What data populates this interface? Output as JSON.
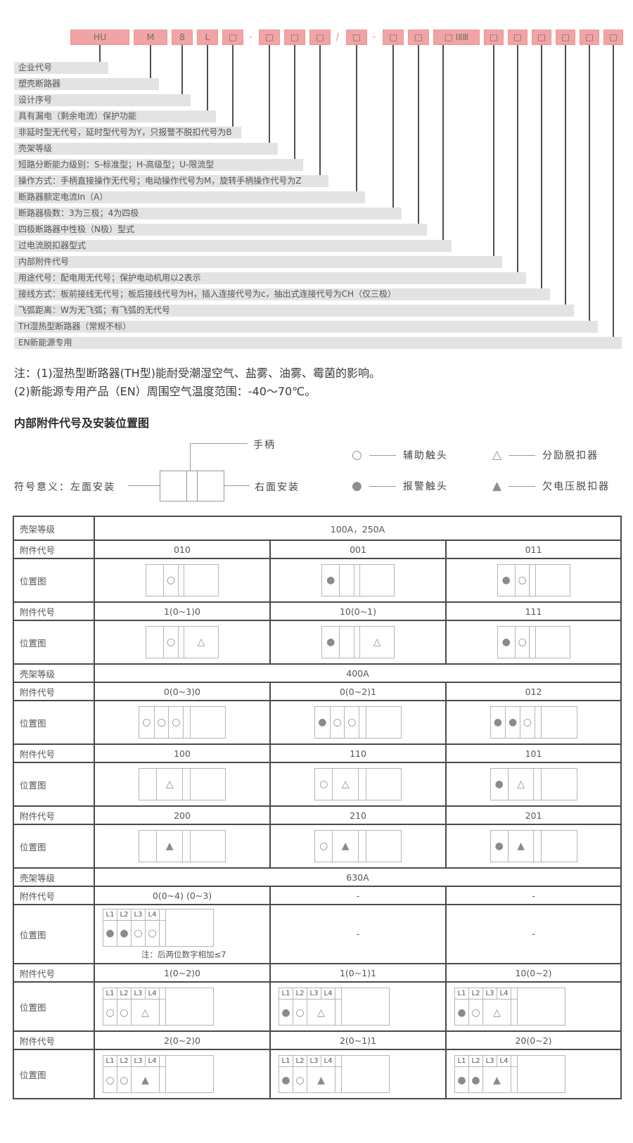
{
  "colors": {
    "accent_pink": "#f2a4a4",
    "pink_border": "#eb9595",
    "bar_gray": "#e3e3e3",
    "line_dark": "#4f4f4f",
    "table_border": "#4a4a4a",
    "symbol_gray": "#8f8f8f",
    "text_gray": "#555555"
  },
  "model": {
    "segments": [
      {
        "text": "HU",
        "kind": "box"
      },
      {
        "text": "M",
        "kind": "box"
      },
      {
        "text": "8",
        "kind": "box"
      },
      {
        "text": "L",
        "kind": "box"
      },
      {
        "text": "□",
        "kind": "box"
      },
      {
        "text": "-",
        "kind": "sep"
      },
      {
        "text": "□",
        "kind": "box"
      },
      {
        "text": "□",
        "kind": "box"
      },
      {
        "text": "□",
        "kind": "box"
      },
      {
        "text": "/",
        "kind": "sep"
      },
      {
        "text": "□",
        "kind": "box"
      },
      {
        "text": "-",
        "kind": "sep"
      },
      {
        "text": "□",
        "kind": "box"
      },
      {
        "text": "□",
        "kind": "box"
      },
      {
        "text": "□ ⅠⅡⅢ",
        "kind": "box"
      },
      {
        "text": "□",
        "kind": "box"
      },
      {
        "text": "□",
        "kind": "box"
      },
      {
        "text": "□",
        "kind": "box"
      },
      {
        "text": "□",
        "kind": "box"
      },
      {
        "text": "□",
        "kind": "box"
      },
      {
        "text": "□",
        "kind": "box"
      }
    ],
    "fields": [
      "企业代号",
      "塑壳断路器",
      "设计序号",
      "具有漏电（剩余电流）保护功能",
      "非延时型无代号，延时型代号为Y，只报警不脱扣代号为B",
      "壳架等级",
      "短路分断能力级别：S-标准型；H-高级型；U-限流型",
      "操作方式：手柄直接操作无代号；电动操作代号为M，旋转手柄操作代号为Z",
      "断路器额定电流In（A）",
      "断路器极数：3为三极；4为四极",
      "四极断路器中性极（N极）型式",
      "过电流脱扣器型式",
      "内部附件代号",
      "用途代号：配电用无代号；保护电动机用以2表示",
      "接线方式：板前接线无代号；板后接线代号为H，插入连接代号为c，抽出式连接代号为CH（仅三极）",
      "飞弧距离：W为无飞弧；有飞弧的无代号",
      "TH湿热型断路器（常规不标）",
      "EN新能源专用"
    ]
  },
  "notes": [
    "注：(1)湿热型断路器(TH型)能耐受潮湿空气、盐雾、油雾、霉菌的影响。",
    "(2)新能源专用产品（EN）周围空气温度范围：-40～70℃。"
  ],
  "section_title": "内部附件代号及安装位置图",
  "legend": {
    "meaning_prefix": "符号意义：",
    "left_label": "左面安装",
    "right_label": "右面安装",
    "top_label": "手柄",
    "items": [
      {
        "symbol": "○",
        "label": "辅助触头"
      },
      {
        "symbol": "△",
        "label": "分励脱扣器"
      },
      {
        "symbol": "●",
        "label": "报警触头"
      },
      {
        "symbol": "▲",
        "label": "欠电压脱扣器"
      }
    ]
  },
  "table": {
    "row_labels": {
      "frame": "壳架等级",
      "codes": "附件代号",
      "diagrams": "位置图"
    },
    "rows": [
      {
        "kind": "frame",
        "value": "100A，250A"
      },
      {
        "kind": "codes",
        "values": [
          "010",
          "001",
          "011"
        ]
      },
      {
        "kind": "diagrams",
        "cells": [
          {
            "type": "A",
            "syms": [
              "",
              "circ",
              "",
              ""
            ]
          },
          {
            "type": "A",
            "syms": [
              "dot",
              "",
              "",
              ""
            ]
          },
          {
            "type": "A",
            "syms": [
              "dot",
              "circ",
              "",
              ""
            ]
          }
        ]
      },
      {
        "kind": "codes",
        "values": [
          "1(0~1)0",
          "10(0~1)",
          "111"
        ]
      },
      {
        "kind": "diagrams",
        "cells": [
          {
            "type": "A",
            "syms": [
              "",
              "circ",
              "",
              "tri"
            ]
          },
          {
            "type": "A",
            "syms": [
              "dot",
              "",
              "",
              "tri"
            ]
          },
          {
            "type": "A",
            "syms": [
              "dot",
              "circ",
              "",
              ""
            ]
          }
        ]
      },
      {
        "kind": "frame",
        "value": "400A"
      },
      {
        "kind": "codes",
        "values": [
          "0(0~3)0",
          "0(0~2)1",
          "012"
        ]
      },
      {
        "kind": "diagrams",
        "cells": [
          {
            "type": "B",
            "syms": [
              "circ",
              "circ",
              "circ",
              "",
              ""
            ]
          },
          {
            "type": "B",
            "syms": [
              "dot",
              "circ",
              "circ",
              "",
              ""
            ]
          },
          {
            "type": "B",
            "syms": [
              "dot",
              "dot",
              "circ",
              "",
              ""
            ]
          }
        ]
      },
      {
        "kind": "codes",
        "values": [
          "100",
          "110",
          "101"
        ]
      },
      {
        "kind": "diagrams",
        "cells": [
          {
            "type": "C",
            "syms": [
              "",
              "tri",
              "",
              ""
            ]
          },
          {
            "type": "C",
            "syms": [
              "circ",
              "tri",
              "",
              ""
            ]
          },
          {
            "type": "C",
            "syms": [
              "dot",
              "tri",
              "",
              ""
            ]
          }
        ]
      },
      {
        "kind": "codes",
        "values": [
          "200",
          "210",
          "201"
        ]
      },
      {
        "kind": "diagrams",
        "cells": [
          {
            "type": "C",
            "syms": [
              "",
              "trif",
              "",
              ""
            ]
          },
          {
            "type": "C",
            "syms": [
              "circ",
              "trif",
              "",
              ""
            ]
          },
          {
            "type": "C",
            "syms": [
              "dot",
              "trif",
              "",
              ""
            ]
          }
        ]
      },
      {
        "kind": "frame",
        "value": "630A"
      },
      {
        "kind": "codes",
        "values": [
          "0(0~4) (0~3)",
          "-",
          "-"
        ]
      },
      {
        "kind": "diagrams",
        "cells": [
          {
            "type": "L",
            "headers": [
              "L1",
              "L2",
              "L3",
              "L4"
            ],
            "syms": [
              "dot",
              "dot",
              "circ",
              "circ"
            ],
            "note": "注：后两位数字相加≤7"
          },
          {
            "type": "dash"
          },
          {
            "type": "dash"
          }
        ]
      },
      {
        "kind": "codes",
        "values": [
          "1(0~2)0",
          "1(0~1)1",
          "10(0~2)"
        ]
      },
      {
        "kind": "diagrams",
        "cells": [
          {
            "type": "L",
            "headers": [
              "L1",
              "L2",
              "L3",
              "L4"
            ],
            "syms": [
              "circ",
              "circ"
            ],
            "merged": "tri"
          },
          {
            "type": "L",
            "headers": [
              "L1",
              "L2",
              "L3",
              "L4"
            ],
            "syms": [
              "dot",
              "circ"
            ],
            "merged": "tri"
          },
          {
            "type": "L",
            "headers": [
              "L1",
              "L2",
              "L3",
              "L4"
            ],
            "syms": [
              "dot",
              "circ"
            ],
            "merged": "tri"
          }
        ]
      },
      {
        "kind": "codes",
        "values": [
          "2(0~2)0",
          "2(0~1)1",
          "20(0~2)"
        ]
      },
      {
        "kind": "diagrams",
        "cells": [
          {
            "type": "L",
            "headers": [
              "L1",
              "L2",
              "L3",
              "L4"
            ],
            "syms": [
              "circ",
              "circ"
            ],
            "merged": "trif"
          },
          {
            "type": "L",
            "headers": [
              "L1",
              "L2",
              "L3",
              "L4"
            ],
            "syms": [
              "dot",
              "circ"
            ],
            "merged": "trif"
          },
          {
            "type": "L",
            "headers": [
              "L1",
              "L2",
              "L3",
              "L4"
            ],
            "syms": [
              "dot",
              "dot"
            ],
            "merged": "trif"
          }
        ]
      }
    ]
  }
}
